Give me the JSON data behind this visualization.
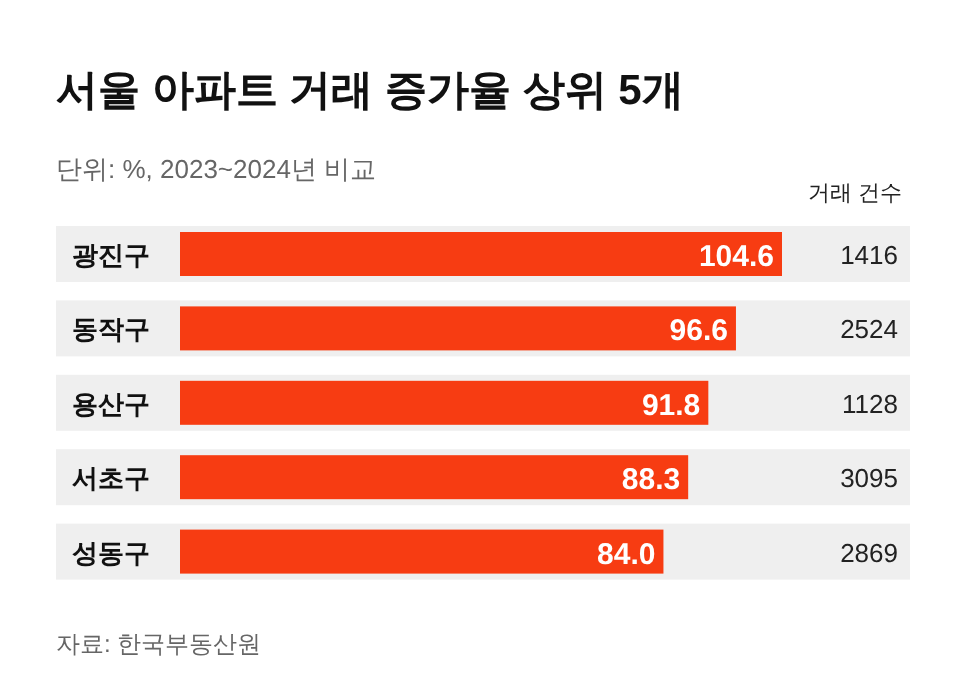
{
  "chart_data": {
    "type": "bar",
    "orientation": "horizontal",
    "title": "서울 아파트 거래 증가율 상위 5개",
    "subtitle": "단위: %, 2023~2024년 비교",
    "categories": [
      "광진구",
      "동작구",
      "용산구",
      "서초구",
      "성동구"
    ],
    "values": [
      104.6,
      96.6,
      91.8,
      88.3,
      84.0
    ],
    "value_labels": [
      "104.6",
      "96.6",
      "91.8",
      "88.3",
      "84.0"
    ],
    "color": "#f73c12",
    "annotations": [
      "거래 건수",
      "1416",
      "2524",
      "1128",
      "3095",
      "2869",
      "자료: 한국부동산원"
    ]
  }
}
